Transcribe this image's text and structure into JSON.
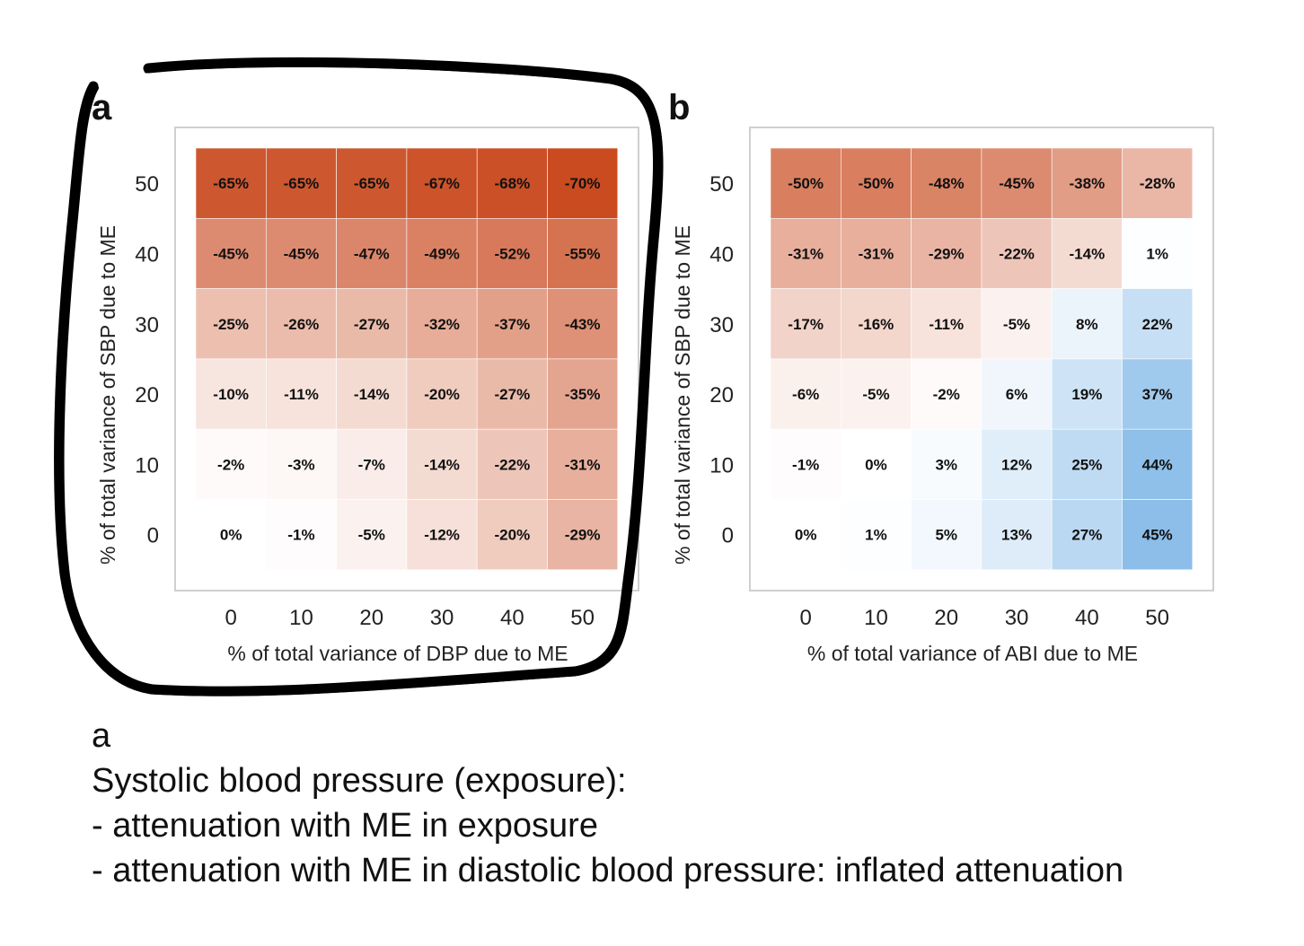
{
  "chart_data": [
    {
      "type": "heatmap",
      "panel": "a",
      "xlabel": "%  of total variance of DBP due to ME",
      "ylabel": "%  of total variance of SBP due to ME",
      "x_ticks": [
        "0",
        "10",
        "20",
        "30",
        "40",
        "50"
      ],
      "y_ticks": [
        "0",
        "10",
        "20",
        "30",
        "40",
        "50"
      ],
      "rows_y": [
        50,
        40,
        30,
        20,
        10,
        0
      ],
      "values": [
        [
          -65,
          -65,
          -65,
          -67,
          -68,
          -70
        ],
        [
          -45,
          -45,
          -47,
          -49,
          -52,
          -55
        ],
        [
          -25,
          -26,
          -27,
          -32,
          -37,
          -43
        ],
        [
          -10,
          -11,
          -14,
          -20,
          -27,
          -35
        ],
        [
          -2,
          -3,
          -7,
          -14,
          -22,
          -31
        ],
        [
          0,
          -1,
          -5,
          -12,
          -20,
          -29
        ]
      ],
      "labels": [
        [
          "-65%",
          "-65%",
          "-65%",
          "-67%",
          "-68%",
          "-70%"
        ],
        [
          "-45%",
          "-45%",
          "-47%",
          "-49%",
          "-52%",
          "-55%"
        ],
        [
          "-25%",
          "-26%",
          "-27%",
          "-32%",
          "-37%",
          "-43%"
        ],
        [
          "-10%",
          "-11%",
          "-14%",
          "-20%",
          "-27%",
          "-35%"
        ],
        [
          "-2%",
          "-3%",
          "-7%",
          "-14%",
          "-22%",
          "-31%"
        ],
        [
          "0%",
          "-1%",
          "-5%",
          "-12%",
          "-20%",
          "-29%"
        ]
      ],
      "negative_color": "#c8461a",
      "positive_color": "#7fb7e6",
      "circled": true
    },
    {
      "type": "heatmap",
      "panel": "b",
      "xlabel": "%  of total variance of ABI due to ME",
      "ylabel": "%  of total variance of SBP due to ME",
      "x_ticks": [
        "0",
        "10",
        "20",
        "30",
        "40",
        "50"
      ],
      "y_ticks": [
        "0",
        "10",
        "20",
        "30",
        "40",
        "50"
      ],
      "rows_y": [
        50,
        40,
        30,
        20,
        10,
        0
      ],
      "values": [
        [
          -50,
          -50,
          -48,
          -45,
          -38,
          -28
        ],
        [
          -31,
          -31,
          -29,
          -22,
          -14,
          1
        ],
        [
          -17,
          -16,
          -11,
          -5,
          8,
          22
        ],
        [
          -6,
          -5,
          -2,
          6,
          19,
          37
        ],
        [
          -1,
          0,
          3,
          12,
          25,
          44
        ],
        [
          0,
          1,
          5,
          13,
          27,
          45
        ]
      ],
      "labels": [
        [
          "-50%",
          "-50%",
          "-48%",
          "-45%",
          "-38%",
          "-28%"
        ],
        [
          "-31%",
          "-31%",
          "-29%",
          "-22%",
          "-14%",
          "1%"
        ],
        [
          "-17%",
          "-16%",
          "-11%",
          "-5%",
          "8%",
          "22%"
        ],
        [
          "-6%",
          "-5%",
          "-2%",
          "6%",
          "19%",
          "37%"
        ],
        [
          "-1%",
          "0%",
          "3%",
          "12%",
          "25%",
          "44%"
        ],
        [
          "0%",
          "1%",
          "5%",
          "13%",
          "27%",
          "45%"
        ]
      ],
      "negative_color": "#c8461a",
      "positive_color": "#7fb7e6",
      "circled": false
    }
  ],
  "caption": {
    "line1": "a",
    "line2": "Systolic blood pressure (exposure):",
    "line3": "- attenuation with ME in exposure",
    "line4": "- attenuation with ME in diastolic blood pressure: inflated attenuation"
  }
}
